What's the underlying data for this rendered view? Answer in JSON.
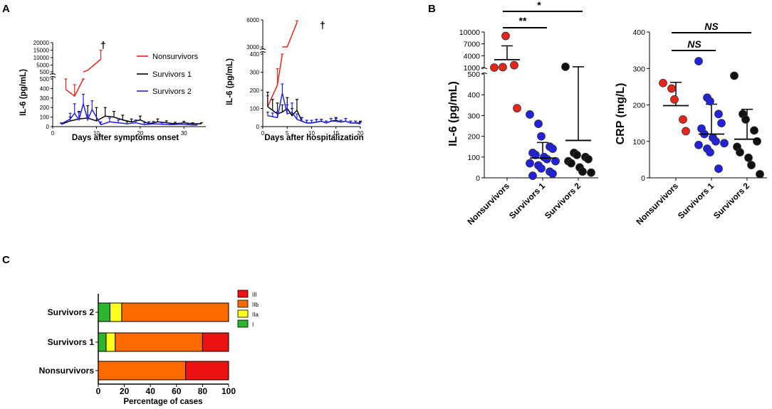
{
  "panels": {
    "A": "A",
    "B": "B",
    "C": "C"
  },
  "chart_data": [
    {
      "type": "line",
      "id": "A1",
      "xlabel": "Days after symptoms onset",
      "ylabel": "IL-6 (pg/mL)",
      "xlim": [
        0,
        35
      ],
      "xticks": [
        0,
        10,
        20,
        30
      ],
      "ylim_lower": [
        0,
        500
      ],
      "yticks_lower": [
        0,
        100,
        200,
        300,
        400,
        500
      ],
      "ylim_upper": [
        500,
        20000
      ],
      "yticks_upper": [
        "500",
        "5000",
        "10000",
        "15000",
        "20000"
      ],
      "death_marker": "†",
      "legend": [
        {
          "name": "Nonsurvivors",
          "color": "#e8241c"
        },
        {
          "name": "Survivors 1",
          "color": "#000000"
        },
        {
          "name": "Survivors 2",
          "color": "#2222dd"
        }
      ],
      "series": [
        {
          "name": "Nonsurvivors",
          "color": "#e8241c",
          "x": [
            3,
            5,
            7
          ],
          "y": [
            390,
            320,
            500
          ],
          "err": [
            120,
            120,
            150
          ],
          "upper_x": [
            7,
            8,
            11
          ],
          "upper_y": [
            500,
            1500,
            9000
          ],
          "upper_err": [
            0,
            0,
            6000
          ]
        },
        {
          "name": "Survivors 1",
          "color": "#000000",
          "x": [
            2,
            4,
            6,
            8,
            10,
            12,
            14,
            16,
            18,
            20,
            22,
            24,
            26,
            28,
            30,
            32,
            34
          ],
          "y": [
            25,
            60,
            80,
            90,
            60,
            110,
            100,
            70,
            50,
            70,
            30,
            50,
            40,
            30,
            40,
            30,
            30
          ],
          "err": [
            10,
            40,
            80,
            130,
            140,
            90,
            60,
            50,
            30,
            40,
            20,
            30,
            20,
            15,
            15,
            10,
            10
          ]
        },
        {
          "name": "Survivors 2",
          "color": "#2222dd",
          "x": [
            2,
            4,
            5,
            6,
            7,
            8,
            9,
            11,
            13,
            15,
            17,
            19,
            21,
            23,
            25,
            27,
            29,
            31,
            33
          ],
          "y": [
            30,
            80,
            140,
            70,
            240,
            70,
            180,
            20,
            50,
            40,
            30,
            40,
            20,
            30,
            25,
            20,
            25,
            20,
            15
          ],
          "err": [
            10,
            60,
            100,
            80,
            100,
            50,
            90,
            30,
            40,
            30,
            20,
            30,
            20,
            25,
            15,
            10,
            10,
            10,
            10
          ]
        }
      ]
    },
    {
      "type": "line",
      "id": "A2",
      "xlabel": "Days after hospitalization",
      "ylabel": "IL-6 (pg/mL)",
      "xlim": [
        0,
        20
      ],
      "xticks": [
        0,
        5,
        10,
        15,
        20
      ],
      "ylim_lower": [
        0,
        400
      ],
      "yticks_lower": [
        0,
        100,
        200,
        300,
        400
      ],
      "ylim_upper": [
        400,
        6000
      ],
      "yticks_upper": [
        "3000",
        "6000"
      ],
      "death_marker": "†",
      "series": [
        {
          "name": "Nonsurvivors",
          "color": "#e8241c",
          "x": [
            1,
            3,
            4
          ],
          "y": [
            110,
            230,
            400
          ],
          "err": [
            60,
            90,
            100
          ],
          "upper_x": [
            4,
            5,
            7
          ],
          "upper_y": [
            400,
            2000,
            5700
          ],
          "upper_err": [
            0,
            0,
            200
          ]
        },
        {
          "name": "Survivors 1",
          "color": "#000000",
          "x": [
            1,
            2,
            3,
            4,
            5,
            6,
            7,
            8,
            9,
            10,
            11,
            12,
            13,
            14,
            15,
            16,
            17,
            18,
            19,
            20
          ],
          "y": [
            110,
            90,
            70,
            80,
            100,
            60,
            90,
            30,
            20,
            20,
            25,
            30,
            20,
            30,
            35,
            25,
            30,
            20,
            20,
            20
          ],
          "err": [
            80,
            60,
            60,
            40,
            60,
            40,
            60,
            20,
            15,
            15,
            15,
            10,
            10,
            15,
            15,
            10,
            15,
            10,
            10,
            10
          ]
        },
        {
          "name": "Survivors 2",
          "color": "#2222dd",
          "x": [
            1,
            2,
            3,
            4,
            5,
            6,
            7,
            8,
            9,
            10,
            11,
            12,
            13,
            14,
            15,
            16,
            17,
            18,
            19,
            20
          ],
          "y": [
            60,
            55,
            50,
            185,
            70,
            80,
            40,
            30,
            20,
            20,
            25,
            30,
            20,
            30,
            30,
            25,
            30,
            20,
            20,
            15
          ],
          "err": [
            20,
            20,
            30,
            50,
            50,
            50,
            30,
            20,
            15,
            15,
            15,
            10,
            10,
            15,
            15,
            10,
            15,
            10,
            10,
            10
          ]
        }
      ]
    },
    {
      "type": "scatter",
      "id": "B1",
      "ylabel": "IL-6 (pg/mL)",
      "categories": [
        "Nonsurvivors",
        "Survivors 1",
        "Survivors 2"
      ],
      "colors": [
        "#e8241c",
        "#2222dd",
        "#111111"
      ],
      "ylim_lower": [
        0,
        500
      ],
      "yticks_lower": [
        0,
        100,
        200,
        300,
        400,
        500
      ],
      "ylim_upper": [
        1000,
        10000
      ],
      "yticks_upper": [
        "1000",
        "4000",
        "7000",
        "10000"
      ],
      "points": [
        [
          680,
          1100,
          9000,
          1600,
          335
        ],
        [
          305,
          260,
          200,
          150,
          140,
          120,
          110,
          100,
          90,
          80,
          70,
          60,
          45,
          30,
          20,
          10
        ],
        [
          1200,
          120,
          110,
          100,
          90,
          80,
          70,
          50,
          30,
          25
        ]
      ],
      "mean": [
        3000,
        95,
        180
      ],
      "sd_upper": [
        6500,
        170,
        1200
      ],
      "significance": [
        {
          "from": "Nonsurvivors",
          "to": "Survivors 1",
          "label": "**"
        },
        {
          "from": "Nonsurvivors",
          "to": "Survivors 2",
          "label": "*"
        }
      ]
    },
    {
      "type": "scatter",
      "id": "B2",
      "ylabel": "CRP (mg/L)",
      "categories": [
        "Nonsurvivors",
        "Survivors 1",
        "Survivors 2"
      ],
      "colors": [
        "#e8241c",
        "#2222dd",
        "#111111"
      ],
      "ylim": [
        0,
        400
      ],
      "yticks": [
        0,
        100,
        200,
        300,
        400
      ],
      "points": [
        [
          260,
          245,
          215,
          160,
          128
        ],
        [
          320,
          220,
          210,
          175,
          150,
          135,
          120,
          110,
          100,
          95,
          90,
          80,
          70,
          25
        ],
        [
          280,
          175,
          160,
          130,
          100,
          85,
          70,
          55,
          35,
          10
        ]
      ],
      "mean": [
        198,
        120,
        106
      ],
      "sd_upper": [
        262,
        202,
        188
      ],
      "significance": [
        {
          "from": "Nonsurvivors",
          "to": "Survivors 1",
          "label": "NS"
        },
        {
          "from": "Nonsurvivors",
          "to": "Survivors 2",
          "label": "NS"
        }
      ]
    },
    {
      "type": "bar",
      "id": "C",
      "orientation": "horizontal-stacked",
      "xlabel": "Percentage of cases",
      "xlim": [
        0,
        100
      ],
      "xticks": [
        0,
        20,
        40,
        60,
        80,
        100
      ],
      "categories": [
        "Survivors 2",
        "Survivors 1",
        "Nonsurvivors"
      ],
      "series": [
        {
          "name": "I",
          "color": "#2db52d",
          "values": [
            9,
            6,
            0
          ]
        },
        {
          "name": "IIa",
          "color": "#ffff1e",
          "values": [
            9,
            7,
            0
          ]
        },
        {
          "name": "IIb",
          "color": "#ff6a00",
          "values": [
            82,
            67,
            67
          ]
        },
        {
          "name": "III",
          "color": "#ee1111",
          "values": [
            0,
            20,
            33
          ]
        }
      ],
      "legend_order": [
        "III",
        "IIb",
        "IIa",
        "I"
      ]
    }
  ]
}
